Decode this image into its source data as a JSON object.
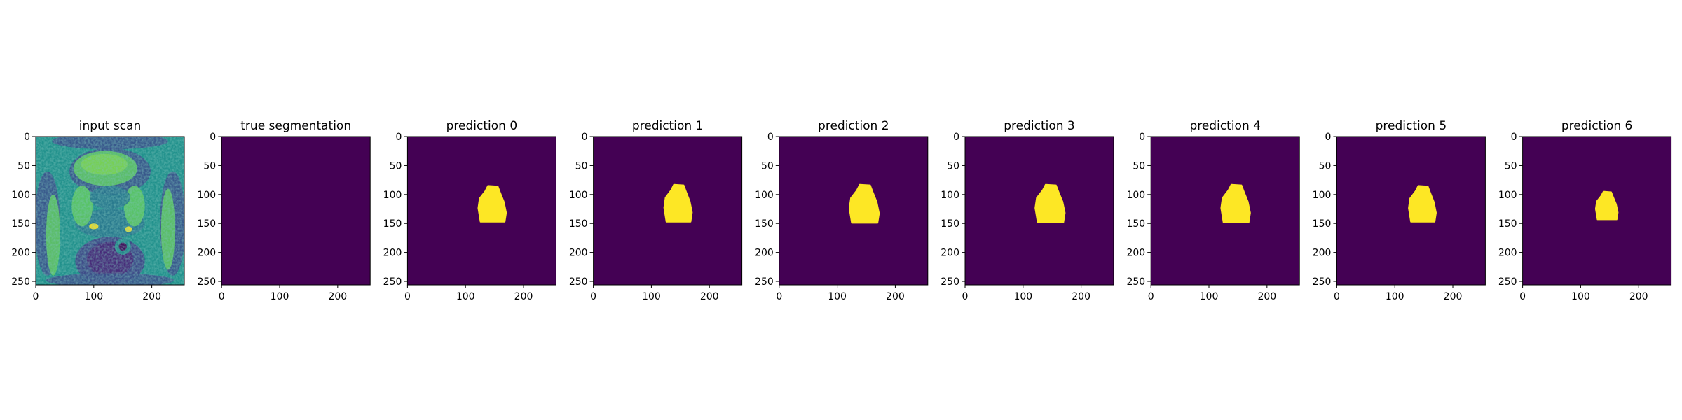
{
  "chart_data": [
    {
      "type": "heatmap",
      "title": "input scan",
      "image": "mri-scan",
      "colormap": "viridis",
      "xlim": [
        0,
        256
      ],
      "ylim": [
        256,
        0
      ],
      "xticks": [
        "0",
        "100",
        "200"
      ],
      "yticks": [
        "0",
        "50",
        "100",
        "150",
        "200",
        "250"
      ]
    },
    {
      "type": "heatmap",
      "title": "true segmentation",
      "image": "mask",
      "colormap": "viridis",
      "mask_present": false,
      "xlim": [
        0,
        256
      ],
      "ylim": [
        256,
        0
      ],
      "xticks": [
        "0",
        "100",
        "200"
      ],
      "yticks": [
        "0",
        "50",
        "100",
        "150",
        "200",
        "250"
      ]
    },
    {
      "type": "heatmap",
      "title": "prediction 0",
      "image": "mask",
      "colormap": "viridis",
      "mask_present": true,
      "mask_center": [
        145,
        118
      ],
      "mask_extent_x": [
        122,
        170
      ],
      "mask_extent_y": [
        85,
        147
      ],
      "xlim": [
        0,
        256
      ],
      "ylim": [
        256,
        0
      ],
      "xticks": [
        "0",
        "100",
        "200"
      ],
      "yticks": [
        "0",
        "50",
        "100",
        "150",
        "200",
        "250"
      ]
    },
    {
      "type": "heatmap",
      "title": "prediction 1",
      "image": "mask",
      "colormap": "viridis",
      "mask_present": true,
      "mask_center": [
        145,
        118
      ],
      "mask_extent_x": [
        122,
        170
      ],
      "mask_extent_y": [
        83,
        147
      ],
      "xlim": [
        0,
        256
      ],
      "ylim": [
        256,
        0
      ],
      "xticks": [
        "0",
        "100",
        "200"
      ],
      "yticks": [
        "0",
        "50",
        "100",
        "150",
        "200",
        "250"
      ]
    },
    {
      "type": "heatmap",
      "title": "prediction 2",
      "image": "mask",
      "colormap": "viridis",
      "mask_present": true,
      "mask_center": [
        145,
        118
      ],
      "mask_extent_x": [
        121,
        172
      ],
      "mask_extent_y": [
        83,
        149
      ],
      "xlim": [
        0,
        256
      ],
      "ylim": [
        256,
        0
      ],
      "xticks": [
        "0",
        "100",
        "200"
      ],
      "yticks": [
        "0",
        "50",
        "100",
        "150",
        "200",
        "250"
      ]
    },
    {
      "type": "heatmap",
      "title": "prediction 3",
      "image": "mask",
      "colormap": "viridis",
      "mask_present": true,
      "mask_center": [
        145,
        118
      ],
      "mask_extent_x": [
        121,
        172
      ],
      "mask_extent_y": [
        83,
        148
      ],
      "xlim": [
        0,
        256
      ],
      "ylim": [
        256,
        0
      ],
      "xticks": [
        "0",
        "100",
        "200"
      ],
      "yticks": [
        "0",
        "50",
        "100",
        "150",
        "200",
        "250"
      ]
    },
    {
      "type": "heatmap",
      "title": "prediction 4",
      "image": "mask",
      "colormap": "viridis",
      "mask_present": true,
      "mask_center": [
        145,
        118
      ],
      "mask_extent_x": [
        121,
        171
      ],
      "mask_extent_y": [
        83,
        148
      ],
      "xlim": [
        0,
        256
      ],
      "ylim": [
        256,
        0
      ],
      "xticks": [
        "0",
        "100",
        "200"
      ],
      "yticks": [
        "0",
        "50",
        "100",
        "150",
        "200",
        "250"
      ]
    },
    {
      "type": "heatmap",
      "title": "prediction 5",
      "image": "mask",
      "colormap": "viridis",
      "mask_present": true,
      "mask_center": [
        147,
        118
      ],
      "mask_extent_x": [
        124,
        171
      ],
      "mask_extent_y": [
        85,
        147
      ],
      "xlim": [
        0,
        256
      ],
      "ylim": [
        256,
        0
      ],
      "xticks": [
        "0",
        "100",
        "200"
      ],
      "yticks": [
        "0",
        "50",
        "100",
        "150",
        "200",
        "250"
      ]
    },
    {
      "type": "heatmap",
      "title": "prediction 6",
      "image": "mask",
      "colormap": "viridis",
      "mask_present": true,
      "mask_center": [
        145,
        120
      ],
      "mask_extent_x": [
        126,
        164
      ],
      "mask_extent_y": [
        95,
        143
      ],
      "xlim": [
        0,
        256
      ],
      "ylim": [
        256,
        0
      ],
      "xticks": [
        "0",
        "100",
        "200"
      ],
      "yticks": [
        "0",
        "50",
        "100",
        "150",
        "200",
        "250"
      ]
    }
  ],
  "colors": {
    "background_low": "#440154",
    "mask_high": "#fde725",
    "viridis_mid": "#21918c",
    "viridis_green": "#5ec962",
    "viridis_blue": "#3b528b"
  }
}
